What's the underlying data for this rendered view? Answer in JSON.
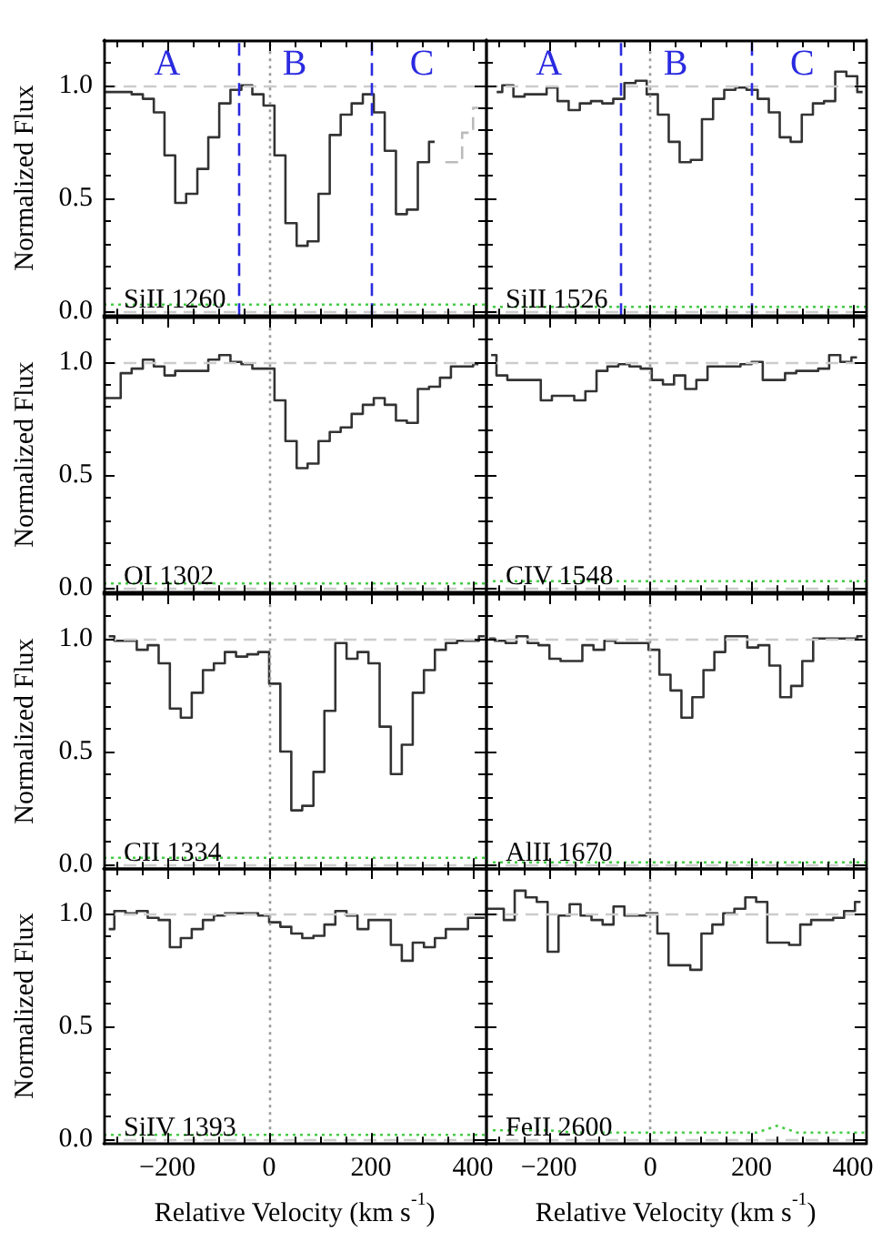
{
  "chart_data": [
    {
      "type": "step",
      "title": "SiII 1260",
      "ylabel": "Normalized Flux",
      "xlim": [
        -325,
        425
      ],
      "ylim": [
        -0.02,
        1.2
      ],
      "xticks": [
        {
          "value": -300,
          "label": null
        },
        {
          "value": -250,
          "label": null
        },
        -200,
        {
          "value": -150,
          "label": null
        },
        {
          "value": -100,
          "label": null
        },
        {
          "value": -50,
          "label": null
        },
        0,
        {
          "value": 50,
          "label": null
        },
        {
          "value": 100,
          "label": null
        },
        {
          "value": 150,
          "label": null
        },
        200,
        {
          "value": 250,
          "label": null
        },
        {
          "value": 300,
          "label": null
        },
        {
          "value": 350,
          "label": null
        },
        400
      ],
      "yticks": [
        {
          "value": 0,
          "label": "0.0"
        },
        {
          "value": 0.1,
          "label": null
        },
        {
          "value": 0.2,
          "label": null
        },
        {
          "value": 0.3,
          "label": null
        },
        {
          "value": 0.4,
          "label": null
        },
        0.5,
        {
          "value": 0.6,
          "label": null
        },
        {
          "value": 0.7,
          "label": null
        },
        {
          "value": 0.8,
          "label": null
        },
        {
          "value": 0.9,
          "label": null
        },
        {
          "value": 1,
          "label": "1.0"
        },
        {
          "value": 1.1,
          "label": null
        }
      ],
      "tick_labels": "y",
      "series": [
        {
          "color": "#333333",
          "x": [
            -324,
            -302,
            -281,
            -259,
            -237,
            -216,
            -195,
            -174,
            -152,
            -130,
            -109,
            -87,
            -65,
            -44,
            -22,
            0,
            21,
            43,
            65,
            86,
            108,
            130,
            151,
            173,
            195,
            216,
            238,
            260,
            281,
            303,
            325
          ],
          "values": [
            0.97,
            0.97,
            0.97,
            0.96,
            0.94,
            0.88,
            0.69,
            0.48,
            0.52,
            0.63,
            0.77,
            0.92,
            0.98,
            1.0,
            0.96,
            0.91,
            0.69,
            0.39,
            0.29,
            0.31,
            0.52,
            0.78,
            0.87,
            0.92,
            0.96,
            0.88,
            0.71,
            0.43,
            0.45,
            0.66,
            0.75
          ]
        },
        {
          "color": "#bbbbbb",
          "line_style": "dashed",
          "x": [
            346,
            368,
            390,
            411
          ],
          "values": [
            0.66,
            0.66,
            0.79,
            0.9
          ]
        },
        {
          "type": "line",
          "color": "#44cc44",
          "line_style": "dotted",
          "x": [
            -325,
            425
          ],
          "values": [
            0.03,
            0.03
          ]
        }
      ],
      "ref_lines": [
        {
          "axis": "y",
          "value": 1,
          "color": "#cccccc",
          "line_style": "dashed"
        },
        {
          "axis": "y",
          "value": 0,
          "color": "#cccccc",
          "line_style": "dashed"
        },
        {
          "axis": "x",
          "value": 0,
          "color": "#999999",
          "line_style": "dotted"
        },
        {
          "axis": "x",
          "value": -60,
          "color": "#2a2ae0",
          "line_style": "dashed"
        },
        {
          "axis": "x",
          "value": 200,
          "color": "#2a2ae0",
          "line_style": "dashed"
        }
      ],
      "annotations": [
        "A",
        "B",
        "C"
      ]
    },
    {
      "type": "step",
      "title": "SiII 1526",
      "xlim": [
        -325,
        425
      ],
      "ylim": [
        -0.02,
        1.2
      ],
      "xticks": [
        {
          "value": -300,
          "label": null
        },
        {
          "value": -250,
          "label": null
        },
        -200,
        {
          "value": -150,
          "label": null
        },
        {
          "value": -100,
          "label": null
        },
        {
          "value": -50,
          "label": null
        },
        0,
        {
          "value": 50,
          "label": null
        },
        {
          "value": 100,
          "label": null
        },
        {
          "value": 150,
          "label": null
        },
        200,
        {
          "value": 250,
          "label": null
        },
        {
          "value": 300,
          "label": null
        },
        {
          "value": 350,
          "label": null
        },
        400
      ],
      "yticks": [
        0,
        {
          "value": 0.1,
          "label": null
        },
        {
          "value": 0.2,
          "label": null
        },
        {
          "value": 0.3,
          "label": null
        },
        {
          "value": 0.4,
          "label": null
        },
        0.5,
        {
          "value": 0.6,
          "label": null
        },
        {
          "value": 0.7,
          "label": null
        },
        {
          "value": 0.8,
          "label": null
        },
        {
          "value": 0.9,
          "label": null
        },
        1,
        {
          "value": 1.1,
          "label": null
        }
      ],
      "tick_labels": false,
      "series": [
        {
          "color": "#333333",
          "x": [
            -303,
            -281,
            -259,
            -237,
            -215,
            -194,
            -172,
            -150,
            -128,
            -106,
            -84,
            -62,
            -40,
            -18,
            4,
            26,
            47,
            69,
            91,
            113,
            135,
            157,
            179,
            201,
            223,
            245,
            266,
            288,
            310,
            332,
            354,
            376,
            398,
            419
          ],
          "values": [
            0.97,
            1.0,
            0.95,
            0.96,
            0.96,
            0.99,
            0.93,
            0.89,
            0.92,
            0.93,
            0.92,
            0.94,
            1.01,
            1.02,
            0.96,
            0.87,
            0.75,
            0.66,
            0.67,
            0.85,
            0.94,
            0.98,
            0.99,
            0.98,
            0.94,
            0.88,
            0.77,
            0.75,
            0.87,
            0.92,
            0.93,
            1.06,
            1.04,
            0.97
          ]
        },
        {
          "type": "line",
          "color": "#44cc44",
          "line_style": "dotted",
          "x": [
            -325,
            425
          ],
          "values": [
            0.02,
            0.02
          ]
        }
      ],
      "ref_lines": [
        {
          "axis": "y",
          "value": 1,
          "color": "#cccccc",
          "line_style": "dashed"
        },
        {
          "axis": "y",
          "value": 0,
          "color": "#cccccc",
          "line_style": "dashed"
        },
        {
          "axis": "x",
          "value": 0,
          "color": "#999999",
          "line_style": "dotted"
        },
        {
          "axis": "x",
          "value": -60,
          "color": "#2a2ae0",
          "line_style": "dashed"
        },
        {
          "axis": "x",
          "value": 200,
          "color": "#2a2ae0",
          "line_style": "dashed"
        }
      ],
      "annotations": [
        "A",
        "B",
        "C"
      ]
    },
    {
      "type": "step",
      "title": "OI 1302",
      "ylabel": "Normalized Flux",
      "xlim": [
        -325,
        425
      ],
      "ylim": [
        -0.02,
        1.2
      ],
      "xticks": [
        {
          "value": -300,
          "label": null
        },
        {
          "value": -250,
          "label": null
        },
        -200,
        {
          "value": -150,
          "label": null
        },
        {
          "value": -100,
          "label": null
        },
        {
          "value": -50,
          "label": null
        },
        0,
        {
          "value": 50,
          "label": null
        },
        {
          "value": 100,
          "label": null
        },
        {
          "value": 150,
          "label": null
        },
        200,
        {
          "value": 250,
          "label": null
        },
        {
          "value": 300,
          "label": null
        },
        {
          "value": 350,
          "label": null
        },
        400
      ],
      "yticks": [
        {
          "value": 0,
          "label": "0.0"
        },
        {
          "value": 0.1,
          "label": null
        },
        {
          "value": 0.2,
          "label": null
        },
        {
          "value": 0.3,
          "label": null
        },
        {
          "value": 0.4,
          "label": null
        },
        0.5,
        {
          "value": 0.6,
          "label": null
        },
        {
          "value": 0.7,
          "label": null
        },
        {
          "value": 0.8,
          "label": null
        },
        {
          "value": 0.9,
          "label": null
        },
        {
          "value": 1,
          "label": "1.0"
        },
        {
          "value": 1.1,
          "label": null
        }
      ],
      "tick_labels": "y",
      "series": [
        {
          "color": "#333333",
          "x": [
            -324,
            -302,
            -281,
            -259,
            -237,
            -216,
            -195,
            -174,
            -152,
            -130,
            -109,
            -87,
            -65,
            -44,
            -22,
            0,
            21,
            43,
            65,
            86,
            108,
            130,
            151,
            173,
            195,
            216,
            238,
            260,
            281,
            303,
            325,
            346,
            368,
            390,
            411
          ],
          "values": [
            0.84,
            0.84,
            0.95,
            0.97,
            1.01,
            0.98,
            0.94,
            0.96,
            0.96,
            0.96,
            1.01,
            1.03,
            1.0,
            0.99,
            0.97,
            0.97,
            0.83,
            0.65,
            0.53,
            0.55,
            0.65,
            0.69,
            0.71,
            0.77,
            0.81,
            0.84,
            0.81,
            0.74,
            0.73,
            0.88,
            0.89,
            0.93,
            0.98,
            0.98,
            0.99
          ]
        },
        {
          "type": "line",
          "color": "#44cc44",
          "line_style": "dotted",
          "x": [
            -325,
            425
          ],
          "values": [
            0.02,
            0.02
          ]
        }
      ],
      "ref_lines": [
        {
          "axis": "y",
          "value": 1,
          "color": "#cccccc",
          "line_style": "dashed"
        },
        {
          "axis": "y",
          "value": 0,
          "color": "#cccccc",
          "line_style": "dashed"
        },
        {
          "axis": "x",
          "value": 0,
          "color": "#999999",
          "line_style": "dotted"
        }
      ]
    },
    {
      "type": "step",
      "title": "CIV 1548",
      "xlim": [
        -325,
        425
      ],
      "ylim": [
        -0.02,
        1.2
      ],
      "xticks": [
        {
          "value": -300,
          "label": null
        },
        {
          "value": -250,
          "label": null
        },
        -200,
        {
          "value": -150,
          "label": null
        },
        {
          "value": -100,
          "label": null
        },
        {
          "value": -50,
          "label": null
        },
        0,
        {
          "value": 50,
          "label": null
        },
        {
          "value": 100,
          "label": null
        },
        {
          "value": 150,
          "label": null
        },
        200,
        {
          "value": 250,
          "label": null
        },
        {
          "value": 300,
          "label": null
        },
        {
          "value": 350,
          "label": null
        },
        400
      ],
      "yticks": [
        0,
        {
          "value": 0.1,
          "label": null
        },
        {
          "value": 0.2,
          "label": null
        },
        {
          "value": 0.3,
          "label": null
        },
        {
          "value": 0.4,
          "label": null
        },
        0.5,
        {
          "value": 0.6,
          "label": null
        },
        {
          "value": 0.7,
          "label": null
        },
        {
          "value": 0.8,
          "label": null
        },
        {
          "value": 0.9,
          "label": null
        },
        1,
        {
          "value": 1.1,
          "label": null
        }
      ],
      "tick_labels": false,
      "series": [
        {
          "color": "#333333",
          "x": [
            -314,
            -293,
            -271,
            -249,
            -227,
            -205,
            -183,
            -161,
            -139,
            -117,
            -95,
            -74,
            -52,
            -30,
            -8,
            14,
            36,
            58,
            80,
            102,
            124,
            145,
            167,
            189,
            211,
            233,
            255,
            277,
            299,
            321,
            342,
            364,
            386,
            408
          ],
          "values": [
            1.03,
            0.94,
            0.92,
            0.92,
            0.92,
            0.83,
            0.85,
            0.85,
            0.83,
            0.87,
            0.96,
            0.98,
            0.99,
            0.98,
            0.97,
            0.92,
            0.9,
            0.94,
            0.88,
            0.92,
            0.98,
            0.98,
            0.98,
            0.99,
            1.0,
            0.92,
            0.92,
            0.95,
            0.96,
            0.96,
            0.97,
            1.03,
            1.0,
            1.02
          ]
        },
        {
          "type": "line",
          "color": "#44cc44",
          "line_style": "dotted",
          "x": [
            -325,
            425
          ],
          "values": [
            0.03,
            0.03
          ]
        }
      ],
      "ref_lines": [
        {
          "axis": "y",
          "value": 1,
          "color": "#cccccc",
          "line_style": "dashed"
        },
        {
          "axis": "y",
          "value": 0,
          "color": "#cccccc",
          "line_style": "dashed"
        },
        {
          "axis": "x",
          "value": 0,
          "color": "#999999",
          "line_style": "dotted"
        }
      ]
    },
    {
      "type": "step",
      "title": "CII 1334",
      "ylabel": "Normalized Flux",
      "xlim": [
        -325,
        425
      ],
      "ylim": [
        -0.02,
        1.2
      ],
      "xticks": [
        {
          "value": -300,
          "label": null
        },
        {
          "value": -250,
          "label": null
        },
        -200,
        {
          "value": -150,
          "label": null
        },
        {
          "value": -100,
          "label": null
        },
        {
          "value": -50,
          "label": null
        },
        0,
        {
          "value": 50,
          "label": null
        },
        {
          "value": 100,
          "label": null
        },
        {
          "value": 150,
          "label": null
        },
        200,
        {
          "value": 250,
          "label": null
        },
        {
          "value": 300,
          "label": null
        },
        {
          "value": 350,
          "label": null
        },
        400
      ],
      "yticks": [
        {
          "value": 0,
          "label": "0.0"
        },
        {
          "value": 0.1,
          "label": null
        },
        {
          "value": 0.2,
          "label": null
        },
        {
          "value": 0.3,
          "label": null
        },
        {
          "value": 0.4,
          "label": null
        },
        0.5,
        {
          "value": 0.6,
          "label": null
        },
        {
          "value": 0.7,
          "label": null
        },
        {
          "value": 0.8,
          "label": null
        },
        {
          "value": 0.9,
          "label": null
        },
        {
          "value": 1,
          "label": "1.0"
        },
        {
          "value": 1.1,
          "label": null
        }
      ],
      "tick_labels": "y",
      "series": [
        {
          "color": "#333333",
          "x": [
            -315,
            -293,
            -271,
            -249,
            -228,
            -206,
            -184,
            -163,
            -141,
            -119,
            -98,
            -76,
            -54,
            -32,
            -11,
            11,
            33,
            54,
            76,
            98,
            119,
            141,
            163,
            184,
            206,
            228,
            250,
            271,
            293,
            315,
            336,
            358,
            380,
            401,
            423
          ],
          "values": [
            1.01,
            0.99,
            0.99,
            0.95,
            0.97,
            0.89,
            0.69,
            0.65,
            0.76,
            0.86,
            0.89,
            0.94,
            0.92,
            0.93,
            0.94,
            0.8,
            0.5,
            0.24,
            0.26,
            0.41,
            0.68,
            0.98,
            0.91,
            0.94,
            0.89,
            0.61,
            0.4,
            0.53,
            0.76,
            0.86,
            0.95,
            0.98,
            0.99,
            0.99,
            1.01
          ]
        },
        {
          "type": "line",
          "color": "#44cc44",
          "line_style": "dotted",
          "x": [
            -325,
            425
          ],
          "values": [
            0.03,
            0.03
          ]
        }
      ],
      "ref_lines": [
        {
          "axis": "y",
          "value": 1,
          "color": "#cccccc",
          "line_style": "dashed"
        },
        {
          "axis": "y",
          "value": 0,
          "color": "#cccccc",
          "line_style": "dashed"
        },
        {
          "axis": "x",
          "value": 0,
          "color": "#999999",
          "line_style": "dotted"
        }
      ]
    },
    {
      "type": "step",
      "title": "AlII 1670",
      "xlim": [
        -325,
        425
      ],
      "ylim": [
        -0.02,
        1.2
      ],
      "xticks": [
        {
          "value": -300,
          "label": null
        },
        {
          "value": -250,
          "label": null
        },
        -200,
        {
          "value": -150,
          "label": null
        },
        {
          "value": -100,
          "label": null
        },
        {
          "value": -50,
          "label": null
        },
        0,
        {
          "value": 50,
          "label": null
        },
        {
          "value": 100,
          "label": null
        },
        {
          "value": 150,
          "label": null
        },
        200,
        {
          "value": 250,
          "label": null
        },
        {
          "value": 300,
          "label": null
        },
        {
          "value": 350,
          "label": null
        },
        400
      ],
      "yticks": [
        0,
        {
          "value": 0.1,
          "label": null
        },
        {
          "value": 0.2,
          "label": null
        },
        {
          "value": 0.3,
          "label": null
        },
        {
          "value": 0.4,
          "label": null
        },
        0.5,
        {
          "value": 0.6,
          "label": null
        },
        {
          "value": 0.7,
          "label": null
        },
        {
          "value": 0.8,
          "label": null
        },
        {
          "value": 0.9,
          "label": null
        },
        1,
        {
          "value": 1.1,
          "label": null
        }
      ],
      "tick_labels": false,
      "series": [
        {
          "color": "#333333",
          "x": [
            -318,
            -296,
            -275,
            -253,
            -231,
            -210,
            -188,
            -166,
            -145,
            -123,
            -101,
            -80,
            -58,
            -36,
            -14,
            7,
            29,
            51,
            72,
            94,
            116,
            137,
            159,
            181,
            202,
            224,
            246,
            267,
            289,
            311,
            332,
            354,
            376,
            398,
            419
          ],
          "values": [
            1.0,
            0.99,
            0.98,
            1.01,
            0.98,
            0.97,
            0.91,
            0.9,
            0.9,
            0.97,
            0.95,
            0.99,
            0.98,
            0.98,
            0.98,
            0.95,
            0.84,
            0.77,
            0.65,
            0.74,
            0.86,
            0.94,
            1.01,
            1.01,
            0.96,
            0.97,
            0.88,
            0.74,
            0.79,
            0.9,
            1.0,
            1.0,
            1.0,
            1.0,
            1.01
          ]
        },
        {
          "type": "line",
          "color": "#44cc44",
          "line_style": "dotted",
          "x": [
            -325,
            425
          ],
          "values": [
            0.01,
            0.01
          ]
        }
      ],
      "ref_lines": [
        {
          "axis": "y",
          "value": 1,
          "color": "#cccccc",
          "line_style": "dashed"
        },
        {
          "axis": "y",
          "value": 0,
          "color": "#cccccc",
          "line_style": "dashed"
        },
        {
          "axis": "x",
          "value": 0,
          "color": "#999999",
          "line_style": "dotted"
        }
      ]
    },
    {
      "type": "step",
      "title": "SiIV 1393",
      "xlabel": "Relative Velocity (km s$^{-1}$)",
      "ylabel": "Normalized Flux",
      "xlim": [
        -325,
        425
      ],
      "ylim": [
        -0.02,
        1.2
      ],
      "xticks": [
        {
          "value": -300,
          "label": null
        },
        {
          "value": -250,
          "label": null
        },
        {
          "value": -200,
          "label": "−200"
        },
        {
          "value": -150,
          "label": null
        },
        {
          "value": -100,
          "label": null
        },
        {
          "value": -50,
          "label": null
        },
        0,
        {
          "value": 50,
          "label": null
        },
        {
          "value": 100,
          "label": null
        },
        {
          "value": 150,
          "label": null
        },
        200,
        {
          "value": 250,
          "label": null
        },
        {
          "value": 300,
          "label": null
        },
        {
          "value": 350,
          "label": null
        },
        400
      ],
      "yticks": [
        {
          "value": 0,
          "label": "0.0"
        },
        {
          "value": 0.1,
          "label": null
        },
        {
          "value": 0.2,
          "label": null
        },
        {
          "value": 0.3,
          "label": null
        },
        {
          "value": 0.4,
          "label": null
        },
        0.5,
        {
          "value": 0.6,
          "label": null
        },
        {
          "value": 0.7,
          "label": null
        },
        {
          "value": 0.8,
          "label": null
        },
        {
          "value": 0.9,
          "label": null
        },
        {
          "value": 1,
          "label": "1.0"
        },
        {
          "value": 1.1,
          "label": null
        }
      ],
      "series": [
        {
          "color": "#333333",
          "x": [
            -315,
            -293,
            -271,
            -249,
            -228,
            -206,
            -184,
            -163,
            -141,
            -119,
            -98,
            -76,
            -54,
            -32,
            -11,
            11,
            33,
            54,
            76,
            98,
            119,
            141,
            163,
            184,
            206,
            228,
            250,
            271,
            293,
            315,
            336,
            358,
            380,
            401,
            423
          ],
          "values": [
            0.93,
            1.01,
            1.0,
            1.01,
            0.98,
            0.97,
            0.85,
            0.89,
            0.93,
            0.97,
            0.99,
            1.0,
            1.0,
            1.0,
            0.99,
            0.96,
            0.94,
            0.91,
            0.89,
            0.9,
            0.95,
            1.01,
            0.99,
            0.93,
            0.97,
            0.97,
            0.86,
            0.79,
            0.87,
            0.85,
            0.89,
            0.93,
            0.93,
            0.98,
            0.98
          ]
        },
        {
          "type": "line",
          "color": "#44cc44",
          "line_style": "dotted",
          "x": [
            -325,
            425
          ],
          "values": [
            0.02,
            0.02
          ]
        }
      ],
      "ref_lines": [
        {
          "axis": "y",
          "value": 1,
          "color": "#cccccc",
          "line_style": "dashed"
        },
        {
          "axis": "y",
          "value": 0,
          "color": "#cccccc",
          "line_style": "dashed"
        },
        {
          "axis": "x",
          "value": 0,
          "color": "#999999",
          "line_style": "dotted"
        }
      ]
    },
    {
      "type": "step",
      "title": "FeII 2600",
      "xlabel": "Relative Velocity (km s$^{-1}$)",
      "xlim": [
        -325,
        425
      ],
      "ylim": [
        -0.02,
        1.2
      ],
      "xticks": [
        {
          "value": -300,
          "label": null
        },
        {
          "value": -250,
          "label": null
        },
        {
          "value": -200,
          "label": "−200"
        },
        {
          "value": -150,
          "label": null
        },
        {
          "value": -100,
          "label": null
        },
        {
          "value": -50,
          "label": null
        },
        0,
        {
          "value": 50,
          "label": null
        },
        {
          "value": 100,
          "label": null
        },
        {
          "value": 150,
          "label": null
        },
        200,
        {
          "value": 250,
          "label": null
        },
        {
          "value": 300,
          "label": null
        },
        {
          "value": 350,
          "label": null
        },
        400
      ],
      "yticks": [
        0,
        {
          "value": 0.1,
          "label": null
        },
        {
          "value": 0.2,
          "label": null
        },
        {
          "value": 0.3,
          "label": null
        },
        {
          "value": 0.4,
          "label": null
        },
        0.5,
        {
          "value": 0.6,
          "label": null
        },
        {
          "value": 0.7,
          "label": null
        },
        {
          "value": 0.8,
          "label": null
        },
        {
          "value": 0.9,
          "label": null
        },
        1,
        {
          "value": 1.1,
          "label": null
        }
      ],
      "tick_labels": "x",
      "series": [
        {
          "color": "#333333",
          "x": [
            -322,
            -300,
            -278,
            -257,
            -235,
            -213,
            -192,
            -170,
            -148,
            -127,
            -105,
            -83,
            -62,
            -40,
            -18,
            3,
            25,
            47,
            68,
            90,
            112,
            133,
            155,
            177,
            198,
            220,
            242,
            263,
            285,
            307,
            328,
            350,
            372,
            393,
            415
          ],
          "values": [
            1.02,
            1.02,
            0.97,
            1.1,
            1.07,
            1.05,
            0.83,
            0.99,
            1.04,
            0.99,
            0.97,
            0.95,
            1.03,
            0.99,
            0.99,
            1.0,
            0.91,
            0.77,
            0.77,
            0.75,
            0.91,
            0.95,
            1.0,
            1.02,
            1.07,
            1.05,
            0.87,
            0.87,
            0.86,
            0.95,
            0.97,
            0.97,
            0.98,
            1.01,
            1.05
          ]
        },
        {
          "type": "line",
          "color": "#44cc44",
          "line_style": "dotted",
          "x": [
            -325,
            -200,
            -150,
            210,
            250,
            290,
            425
          ],
          "values": [
            0.04,
            0.04,
            0.03,
            0.03,
            0.06,
            0.03,
            0.03
          ]
        }
      ],
      "ref_lines": [
        {
          "axis": "y",
          "value": 1,
          "color": "#cccccc",
          "line_style": "dashed"
        },
        {
          "axis": "y",
          "value": 0,
          "color": "#cccccc",
          "line_style": "dashed"
        },
        {
          "axis": "x",
          "value": 0,
          "color": "#999999",
          "line_style": "dotted"
        }
      ]
    }
  ]
}
